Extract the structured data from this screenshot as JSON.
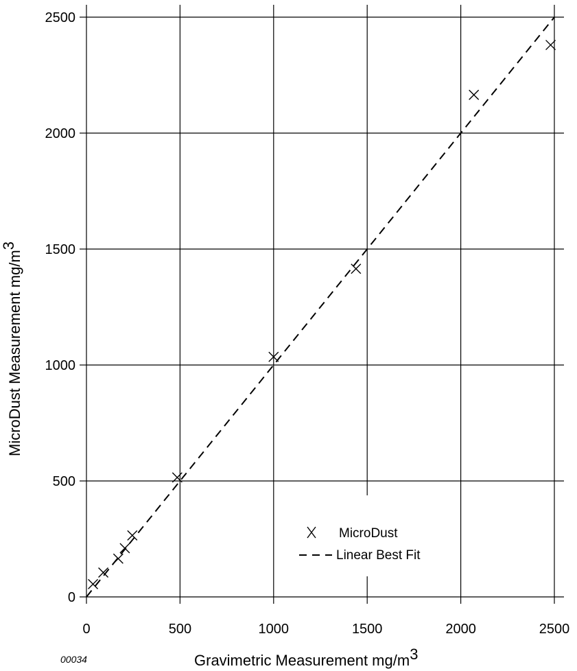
{
  "figure_code": "00034",
  "chart_data": {
    "type": "scatter",
    "xlabel": "Gravimetric Measurement mg/m",
    "xlabel_superscript": "3",
    "ylabel": "MicroDust Measurement mg/m",
    "ylabel_superscript": "3",
    "xlim": [
      0,
      2500
    ],
    "ylim": [
      0,
      2500
    ],
    "x_ticks": [
      0,
      500,
      1000,
      1500,
      2000,
      2500
    ],
    "y_ticks": [
      0,
      500,
      1000,
      1500,
      2000,
      2500
    ],
    "x_tick_labels": [
      "0",
      "500",
      "1000",
      "1500",
      "2000",
      "2500"
    ],
    "y_tick_labels": [
      "0",
      "500",
      "1000",
      "1500",
      "2000",
      "2500"
    ],
    "grid": true,
    "legend_position": "bottom-right",
    "marker": "X",
    "series": [
      {
        "name": "MicroDust",
        "style": "x-marker",
        "x": [
          35,
          90,
          170,
          205,
          245,
          485,
          1000,
          1440,
          2070,
          2480
        ],
        "y": [
          55,
          105,
          165,
          210,
          265,
          515,
          1035,
          1415,
          2165,
          2380
        ]
      },
      {
        "name": "Linear Best Fit",
        "style": "dashed-line",
        "x": [
          0,
          2500
        ],
        "y": [
          0,
          2500
        ]
      }
    ]
  }
}
